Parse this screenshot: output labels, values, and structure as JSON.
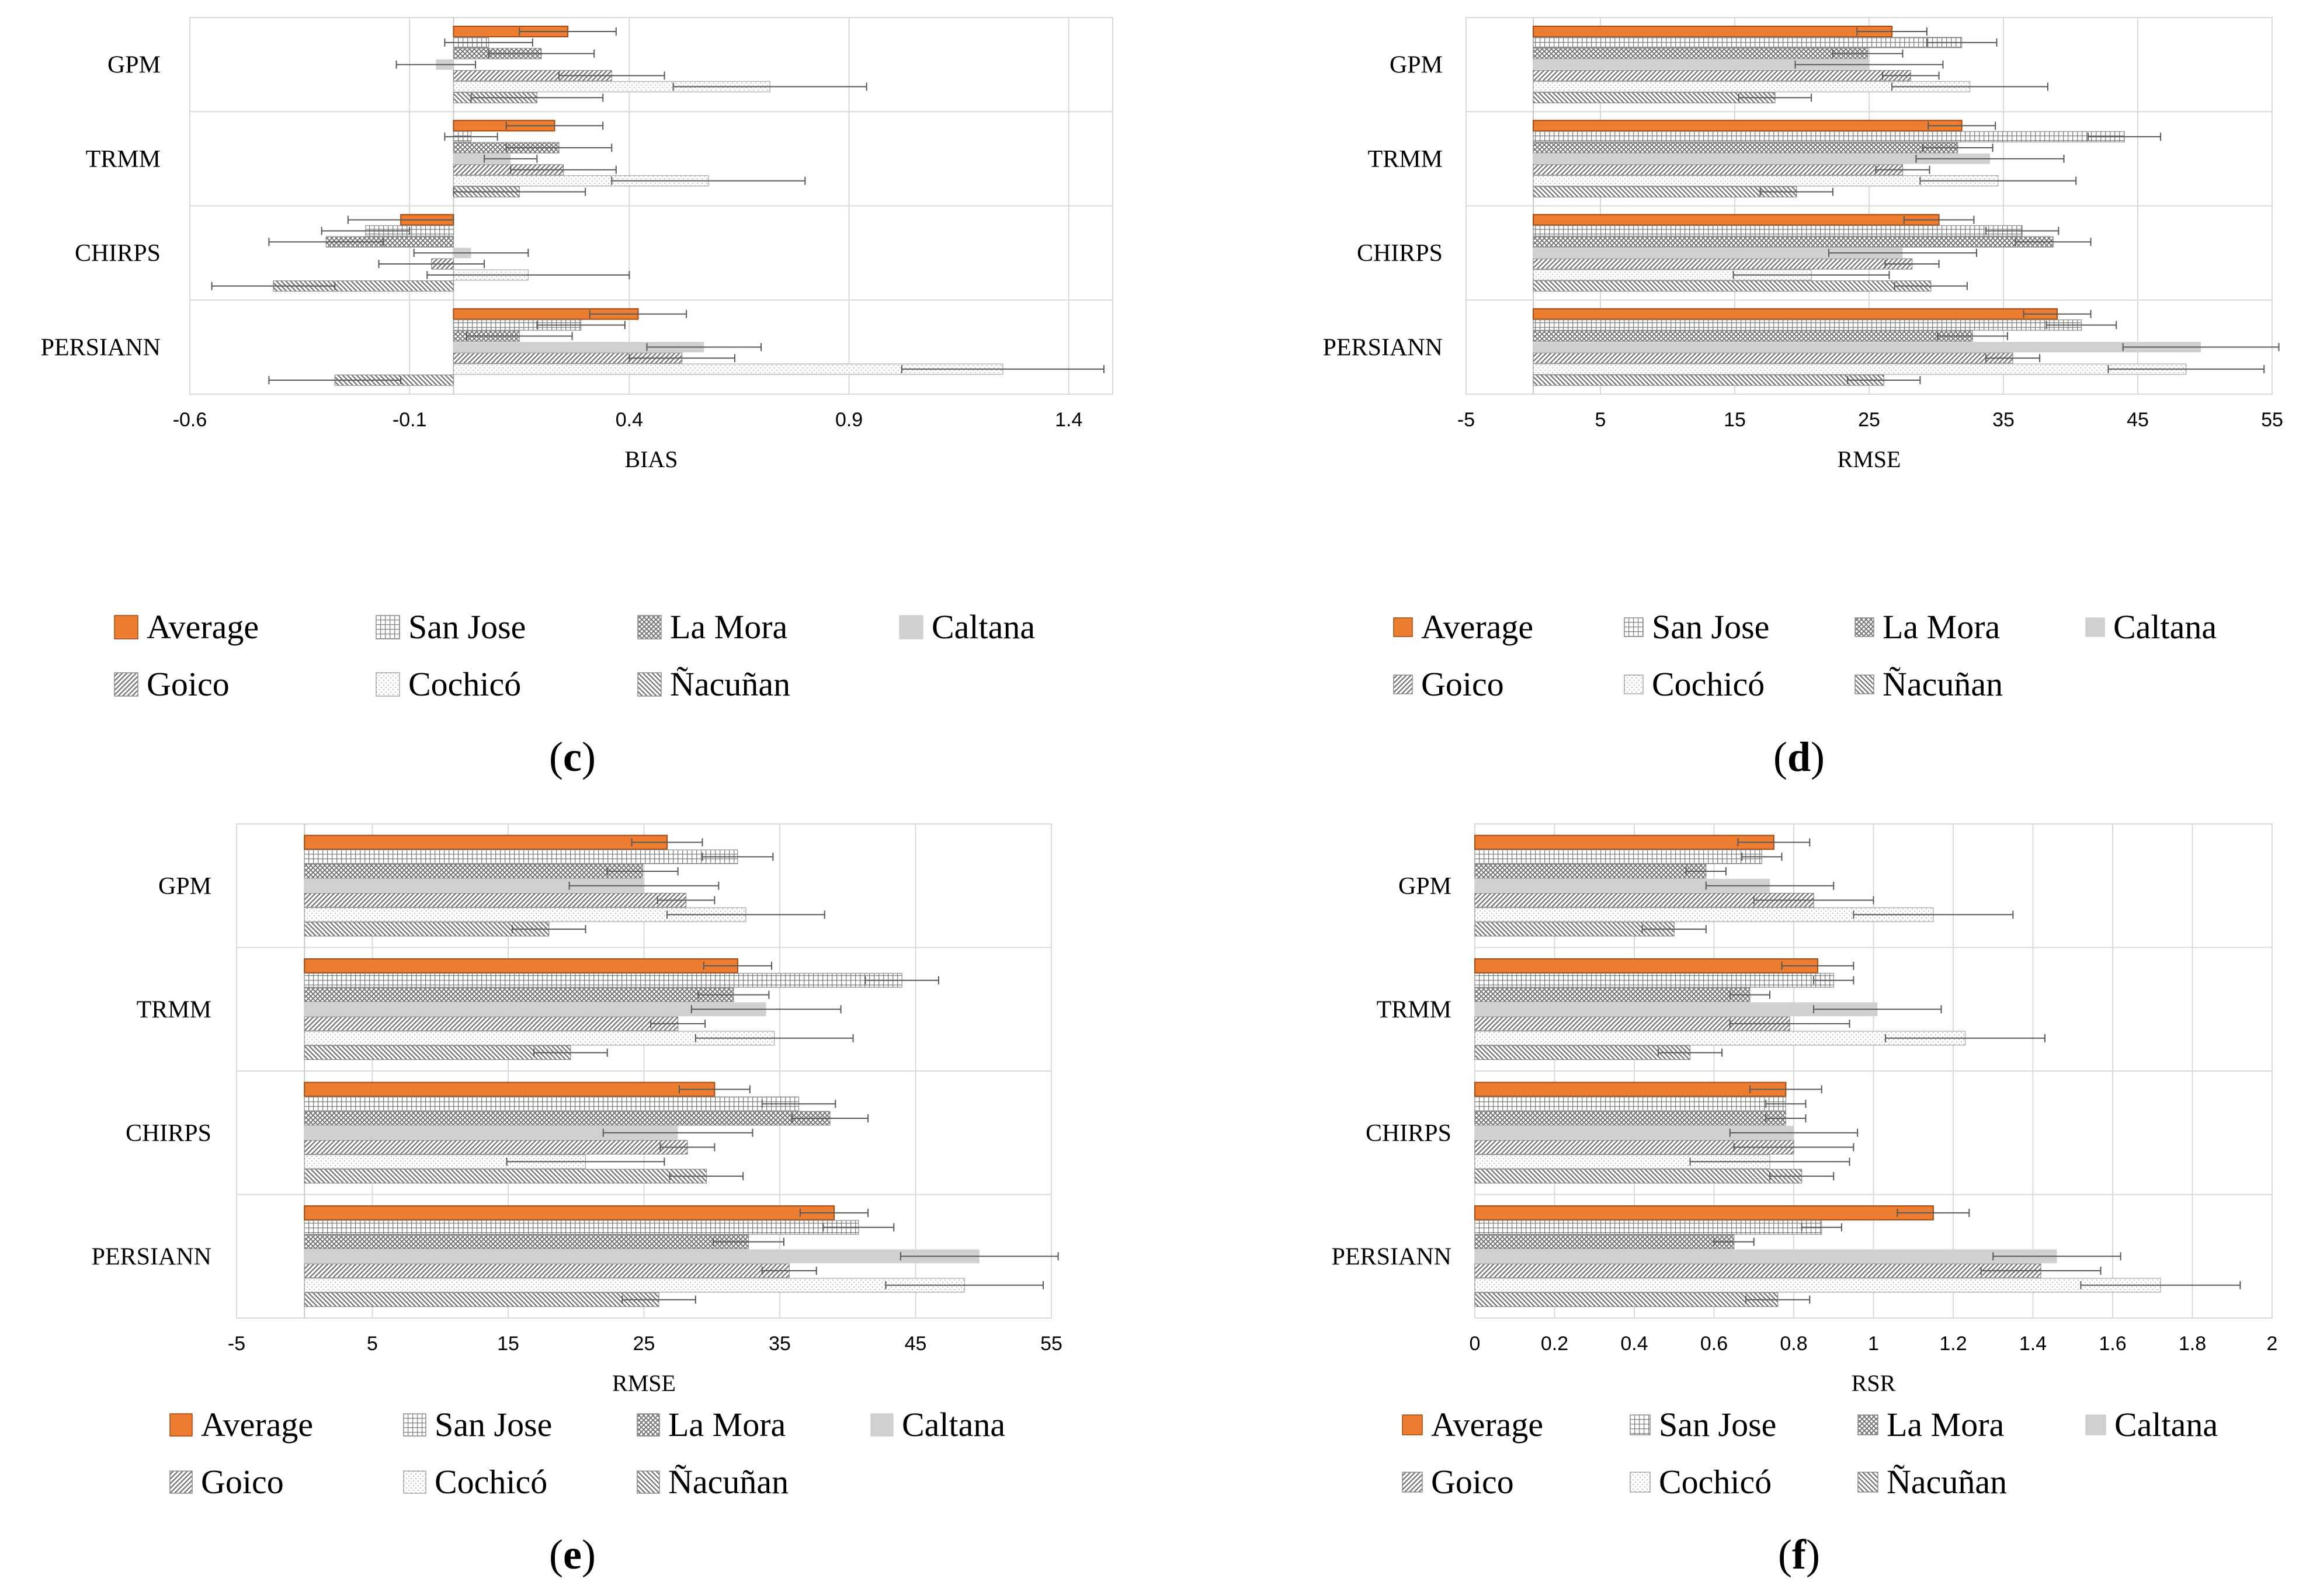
{
  "figure_label_open": "(",
  "figure_label_close": ")",
  "chart_data": [
    {
      "id": "c",
      "panel_label": "c",
      "type": "bar",
      "orientation": "horizontal",
      "error_bars": true,
      "categories": [
        "GPM",
        "TRMM",
        "CHIRPS",
        "PERSIANN"
      ],
      "xlabel": "BIAS",
      "xlim": [
        -0.6,
        1.5
      ],
      "xticks": [
        -0.6,
        -0.1,
        0.4,
        0.9,
        1.4
      ],
      "xtick_labels": [
        "-0.6",
        "-0.1",
        "0.4",
        "0.9",
        "1.4"
      ],
      "series": [
        {
          "name": "Average",
          "values": [
            0.26,
            0.23,
            -0.12,
            0.42
          ],
          "errors": [
            0.11,
            0.11,
            0.12,
            0.11
          ]
        },
        {
          "name": "San Jose",
          "values": [
            0.08,
            0.04,
            -0.2,
            0.29
          ],
          "errors": [
            0.1,
            0.06,
            0.1,
            0.1
          ]
        },
        {
          "name": "La Mora",
          "values": [
            0.2,
            0.24,
            -0.29,
            0.15
          ],
          "errors": [
            0.12,
            0.12,
            0.13,
            0.12
          ]
        },
        {
          "name": "Caltana",
          "values": [
            -0.04,
            0.13,
            0.04,
            0.57
          ],
          "errors": [
            0.09,
            0.06,
            0.13,
            0.13
          ]
        },
        {
          "name": "Goico",
          "values": [
            0.36,
            0.25,
            -0.05,
            0.52
          ],
          "errors": [
            0.12,
            0.12,
            0.12,
            0.12
          ]
        },
        {
          "name": "Cochicó",
          "values": [
            0.72,
            0.58,
            0.17,
            1.25
          ],
          "errors": [
            0.22,
            0.22,
            0.23,
            0.23
          ]
        },
        {
          "name": "Ñacuñan",
          "values": [
            0.19,
            0.15,
            -0.41,
            -0.27
          ],
          "errors": [
            0.15,
            0.15,
            0.14,
            0.15
          ]
        }
      ]
    },
    {
      "id": "d",
      "panel_label": "d",
      "type": "bar",
      "orientation": "horizontal",
      "error_bars": true,
      "categories": [
        "GPM",
        "TRMM",
        "CHIRPS",
        "PERSIANN"
      ],
      "xlabel": "RMSE",
      "xlim": [
        -5,
        55
      ],
      "xticks": [
        -5,
        5,
        15,
        25,
        35,
        45,
        55
      ],
      "xtick_labels": [
        "-5",
        "5",
        "15",
        "25",
        "35",
        "45",
        "55"
      ],
      "series": [
        {
          "name": "Average",
          "values": [
            26.7,
            31.9,
            30.2,
            39
          ],
          "errors": [
            2.6,
            2.5,
            2.6,
            2.5
          ]
        },
        {
          "name": "San Jose",
          "values": [
            31.9,
            44,
            36.4,
            40.8
          ],
          "errors": [
            2.6,
            2.7,
            2.7,
            2.6
          ]
        },
        {
          "name": "La Mora",
          "values": [
            24.9,
            31.6,
            38.7,
            32.7
          ],
          "errors": [
            2.6,
            2.6,
            2.8,
            2.6
          ]
        },
        {
          "name": "Caltana",
          "values": [
            25,
            34,
            27.5,
            49.7
          ],
          "errors": [
            5.5,
            5.5,
            5.5,
            5.8
          ]
        },
        {
          "name": "Goico",
          "values": [
            28.1,
            27.5,
            28.2,
            35.7
          ],
          "errors": [
            2.1,
            2,
            2,
            2
          ]
        },
        {
          "name": "Cochicó",
          "values": [
            32.5,
            34.6,
            20.7,
            48.6
          ],
          "errors": [
            5.8,
            5.8,
            5.8,
            5.8
          ]
        },
        {
          "name": "Ñacuñan",
          "values": [
            18,
            19.6,
            29.6,
            26.1
          ],
          "errors": [
            2.7,
            2.7,
            2.7,
            2.7
          ]
        }
      ]
    },
    {
      "id": "e",
      "panel_label": "e",
      "type": "bar",
      "orientation": "horizontal",
      "error_bars": true,
      "categories": [
        "GPM",
        "TRMM",
        "CHIRPS",
        "PERSIANN"
      ],
      "xlabel": "RMSE",
      "xlim": [
        -5,
        55
      ],
      "xticks": [
        -5,
        5,
        15,
        25,
        35,
        45,
        55
      ],
      "xtick_labels": [
        "-5",
        "5",
        "15",
        "25",
        "35",
        "45",
        "55"
      ],
      "series": [
        {
          "name": "Average",
          "values": [
            26.7,
            31.9,
            30.2,
            39
          ],
          "errors": [
            2.6,
            2.5,
            2.6,
            2.5
          ]
        },
        {
          "name": "San Jose",
          "values": [
            31.9,
            44,
            36.4,
            40.8
          ],
          "errors": [
            2.6,
            2.7,
            2.7,
            2.6
          ]
        },
        {
          "name": "La Mora",
          "values": [
            24.9,
            31.6,
            38.7,
            32.7
          ],
          "errors": [
            2.6,
            2.6,
            2.8,
            2.6
          ]
        },
        {
          "name": "Caltana",
          "values": [
            25,
            34,
            27.5,
            49.7
          ],
          "errors": [
            5.5,
            5.5,
            5.5,
            5.8
          ]
        },
        {
          "name": "Goico",
          "values": [
            28.1,
            27.5,
            28.2,
            35.7
          ],
          "errors": [
            2.1,
            2,
            2,
            2
          ]
        },
        {
          "name": "Cochicó",
          "values": [
            32.5,
            34.6,
            20.7,
            48.6
          ],
          "errors": [
            5.8,
            5.8,
            5.8,
            5.8
          ]
        },
        {
          "name": "Ñacuñan",
          "values": [
            18,
            19.6,
            29.6,
            26.1
          ],
          "errors": [
            2.7,
            2.7,
            2.7,
            2.7
          ]
        }
      ]
    },
    {
      "id": "f",
      "panel_label": "f",
      "type": "bar",
      "orientation": "horizontal",
      "error_bars": true,
      "categories": [
        "GPM",
        "TRMM",
        "CHIRPS",
        "PERSIANN"
      ],
      "xlabel": "RSR",
      "xlim": [
        0,
        2
      ],
      "xticks": [
        0,
        0.2,
        0.4,
        0.6,
        0.8,
        1,
        1.2,
        1.4,
        1.6,
        1.8,
        2
      ],
      "xtick_labels": [
        "0",
        "0.2",
        "0.4",
        "0.6",
        "0.8",
        "1",
        "1.2",
        "1.4",
        "1.6",
        "1.8",
        "2"
      ],
      "series": [
        {
          "name": "Average",
          "values": [
            0.75,
            0.86,
            0.78,
            1.15
          ],
          "errors": [
            0.09,
            0.09,
            0.09,
            0.09
          ]
        },
        {
          "name": "San Jose",
          "values": [
            0.72,
            0.9,
            0.78,
            0.87
          ],
          "errors": [
            0.05,
            0.05,
            0.05,
            0.05
          ]
        },
        {
          "name": "La Mora",
          "values": [
            0.58,
            0.69,
            0.78,
            0.65
          ],
          "errors": [
            0.05,
            0.05,
            0.05,
            0.05
          ]
        },
        {
          "name": "Caltana",
          "values": [
            0.74,
            1.01,
            0.8,
            1.46
          ],
          "errors": [
            0.16,
            0.16,
            0.16,
            0.16
          ]
        },
        {
          "name": "Goico",
          "values": [
            0.85,
            0.79,
            0.8,
            1.42
          ],
          "errors": [
            0.15,
            0.15,
            0.15,
            0.15
          ]
        },
        {
          "name": "Cochicó",
          "values": [
            1.15,
            1.23,
            0.74,
            1.72
          ],
          "errors": [
            0.2,
            0.2,
            0.2,
            0.2
          ]
        },
        {
          "name": "Ñacuñan",
          "values": [
            0.5,
            0.54,
            0.82,
            0.76
          ],
          "errors": [
            0.08,
            0.08,
            0.08,
            0.08
          ]
        }
      ]
    }
  ],
  "legend": {
    "items": [
      "Average",
      "San Jose",
      "La Mora",
      "Caltana",
      "Goico",
      "Cochicó",
      "Ñacuñan"
    ]
  },
  "colors": {
    "average_fill": "#ED7D31",
    "average_stroke": "#A64A12",
    "pattern_ink": "#7F7F7F",
    "caltana_fill": "#D0D0D0",
    "grid": "#D9D9D9",
    "errorbar": "#595959",
    "text": "#000000"
  },
  "patterns": [
    "solid-orange",
    "grid",
    "crosshatch",
    "solid-gray",
    "diagonal-up",
    "dots",
    "diagonal-down"
  ]
}
